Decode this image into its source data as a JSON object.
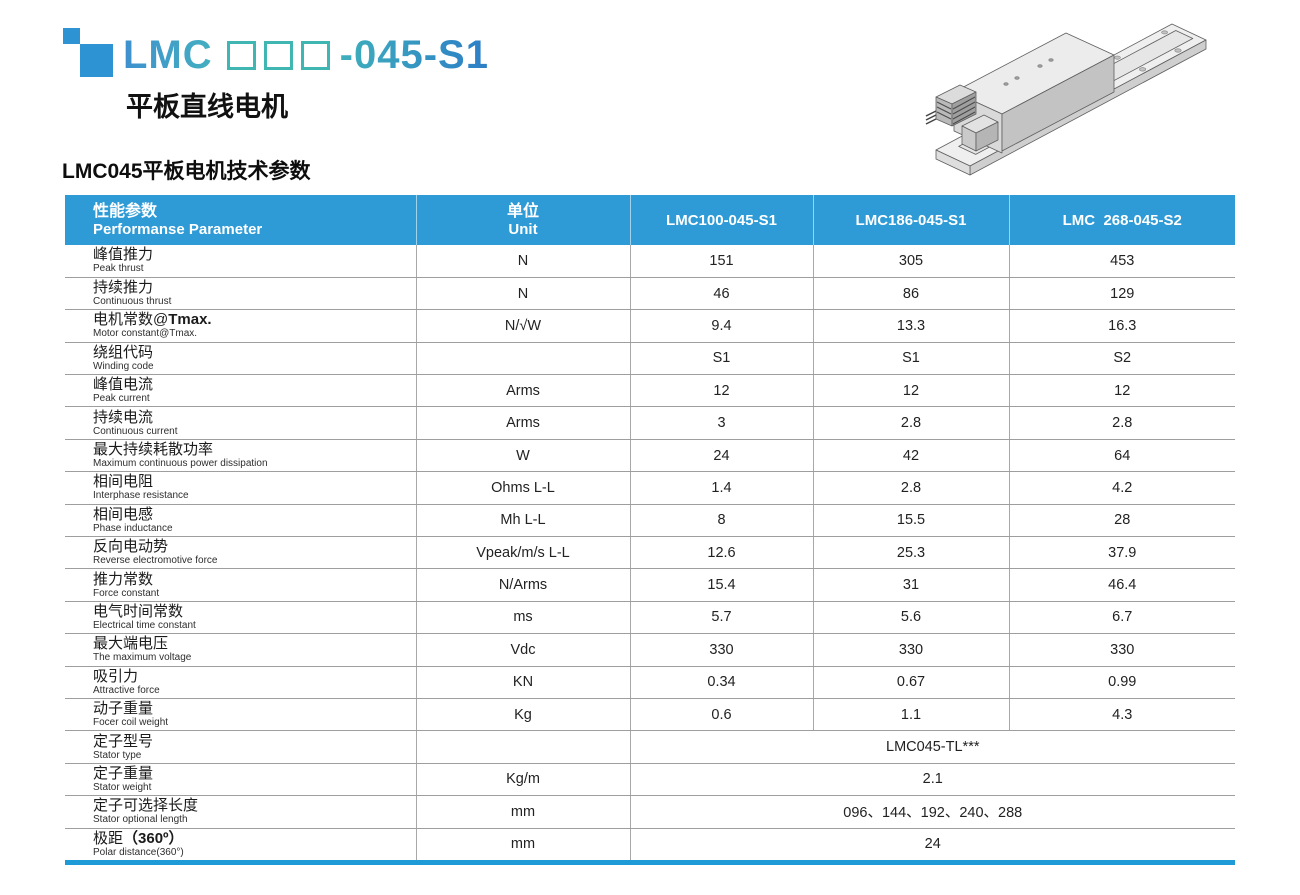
{
  "header": {
    "title_prefix": "LMC",
    "title_suffix": "-045-S1",
    "placeholder_box_count": 3,
    "subtitle": "平板直线电机",
    "section_heading": "LMC045平板电机技术参数"
  },
  "colors": {
    "accent_blue": "#2E9BD6",
    "logo_blue": "#2E93D2",
    "title_teal": "#3FB6B2",
    "title_blue": "#2C7EC6",
    "bottom_bar_blue": "#1E9BD7"
  },
  "product_image": {
    "description": "isometric line drawing of flat linear motor on stator rail"
  },
  "table": {
    "header": {
      "param_zh": "性能参数",
      "param_en": "Performanse Parameter",
      "unit_zh": "单位",
      "unit_en": "Unit",
      "models": [
        "LMC100-045-S1",
        "LMC186-045-S1",
        "LMC  268-045-S2"
      ]
    },
    "rows": [
      {
        "zh": "峰值推力",
        "en": "Peak thrust",
        "unit": "N",
        "values": [
          "151",
          "305",
          "453"
        ]
      },
      {
        "zh": "持续推力",
        "en": "Continuous thrust",
        "unit": "N",
        "values": [
          "46",
          "86",
          "129"
        ]
      },
      {
        "zh": "电机常数@",
        "zh_bold": "Tmax.",
        "en": "Motor constant@Tmax.",
        "unit": "N/√W",
        "values": [
          "9.4",
          "13.3",
          "16.3"
        ]
      },
      {
        "zh": "绕组代码",
        "en": "Winding code",
        "unit": "",
        "values": [
          "S1",
          "S1",
          "S2"
        ]
      },
      {
        "zh": "峰值电流",
        "en": "Peak current",
        "unit": "Arms",
        "values": [
          "12",
          "12",
          "12"
        ]
      },
      {
        "zh": "持续电流",
        "en": "Continuous current",
        "unit": "Arms",
        "values": [
          "3",
          "2.8",
          "2.8"
        ]
      },
      {
        "zh": "最大持续耗散功率",
        "en": "Maximum continuous power dissipation",
        "unit": "W",
        "values": [
          "24",
          "42",
          "64"
        ]
      },
      {
        "zh": "相间电阻",
        "en": "Interphase resistance",
        "unit": "Ohms L-L",
        "values": [
          "1.4",
          "2.8",
          "4.2"
        ]
      },
      {
        "zh": "相间电感",
        "en": "Phase inductance",
        "unit": "Mh L-L",
        "values": [
          "8",
          "15.5",
          "28"
        ]
      },
      {
        "zh": "反向电动势",
        "en": "Reverse electromotive force",
        "unit": "Vpeak/m/s L-L",
        "values": [
          "12.6",
          "25.3",
          "37.9"
        ]
      },
      {
        "zh": "推力常数",
        "en": "Force constant",
        "unit": "N/Arms",
        "values": [
          "15.4",
          "31",
          "46.4"
        ]
      },
      {
        "zh": "电气时间常数",
        "en": "Electrical time constant",
        "unit": "ms",
        "values": [
          "5.7",
          "5.6",
          "6.7"
        ]
      },
      {
        "zh": "最大端电压",
        "en": "The maximum voltage",
        "unit": "Vdc",
        "values": [
          "330",
          "330",
          "330"
        ]
      },
      {
        "zh": "吸引力",
        "en": "Attractive force",
        "unit": "KN",
        "values": [
          "0.34",
          "0.67",
          "0.99"
        ]
      },
      {
        "zh": "动子重量",
        "en": "Focer coil weight",
        "unit": "Kg",
        "values": [
          "0.6",
          "1.1",
          "4.3"
        ]
      },
      {
        "zh": "定子型号",
        "en": "Stator type",
        "unit": "",
        "merged": "LMC045-TL***"
      },
      {
        "zh": "定子重量",
        "en": "Stator weight",
        "unit": "Kg/m",
        "merged": "2.1"
      },
      {
        "zh": "定子可选择长度",
        "en": "Stator optional length",
        "unit": "mm",
        "merged": "096、144、192、240、288"
      },
      {
        "zh": "极距",
        "zh_bold": "（360º）",
        "en": "Polar distance(360°)",
        "unit": "mm",
        "merged": "24"
      }
    ]
  }
}
